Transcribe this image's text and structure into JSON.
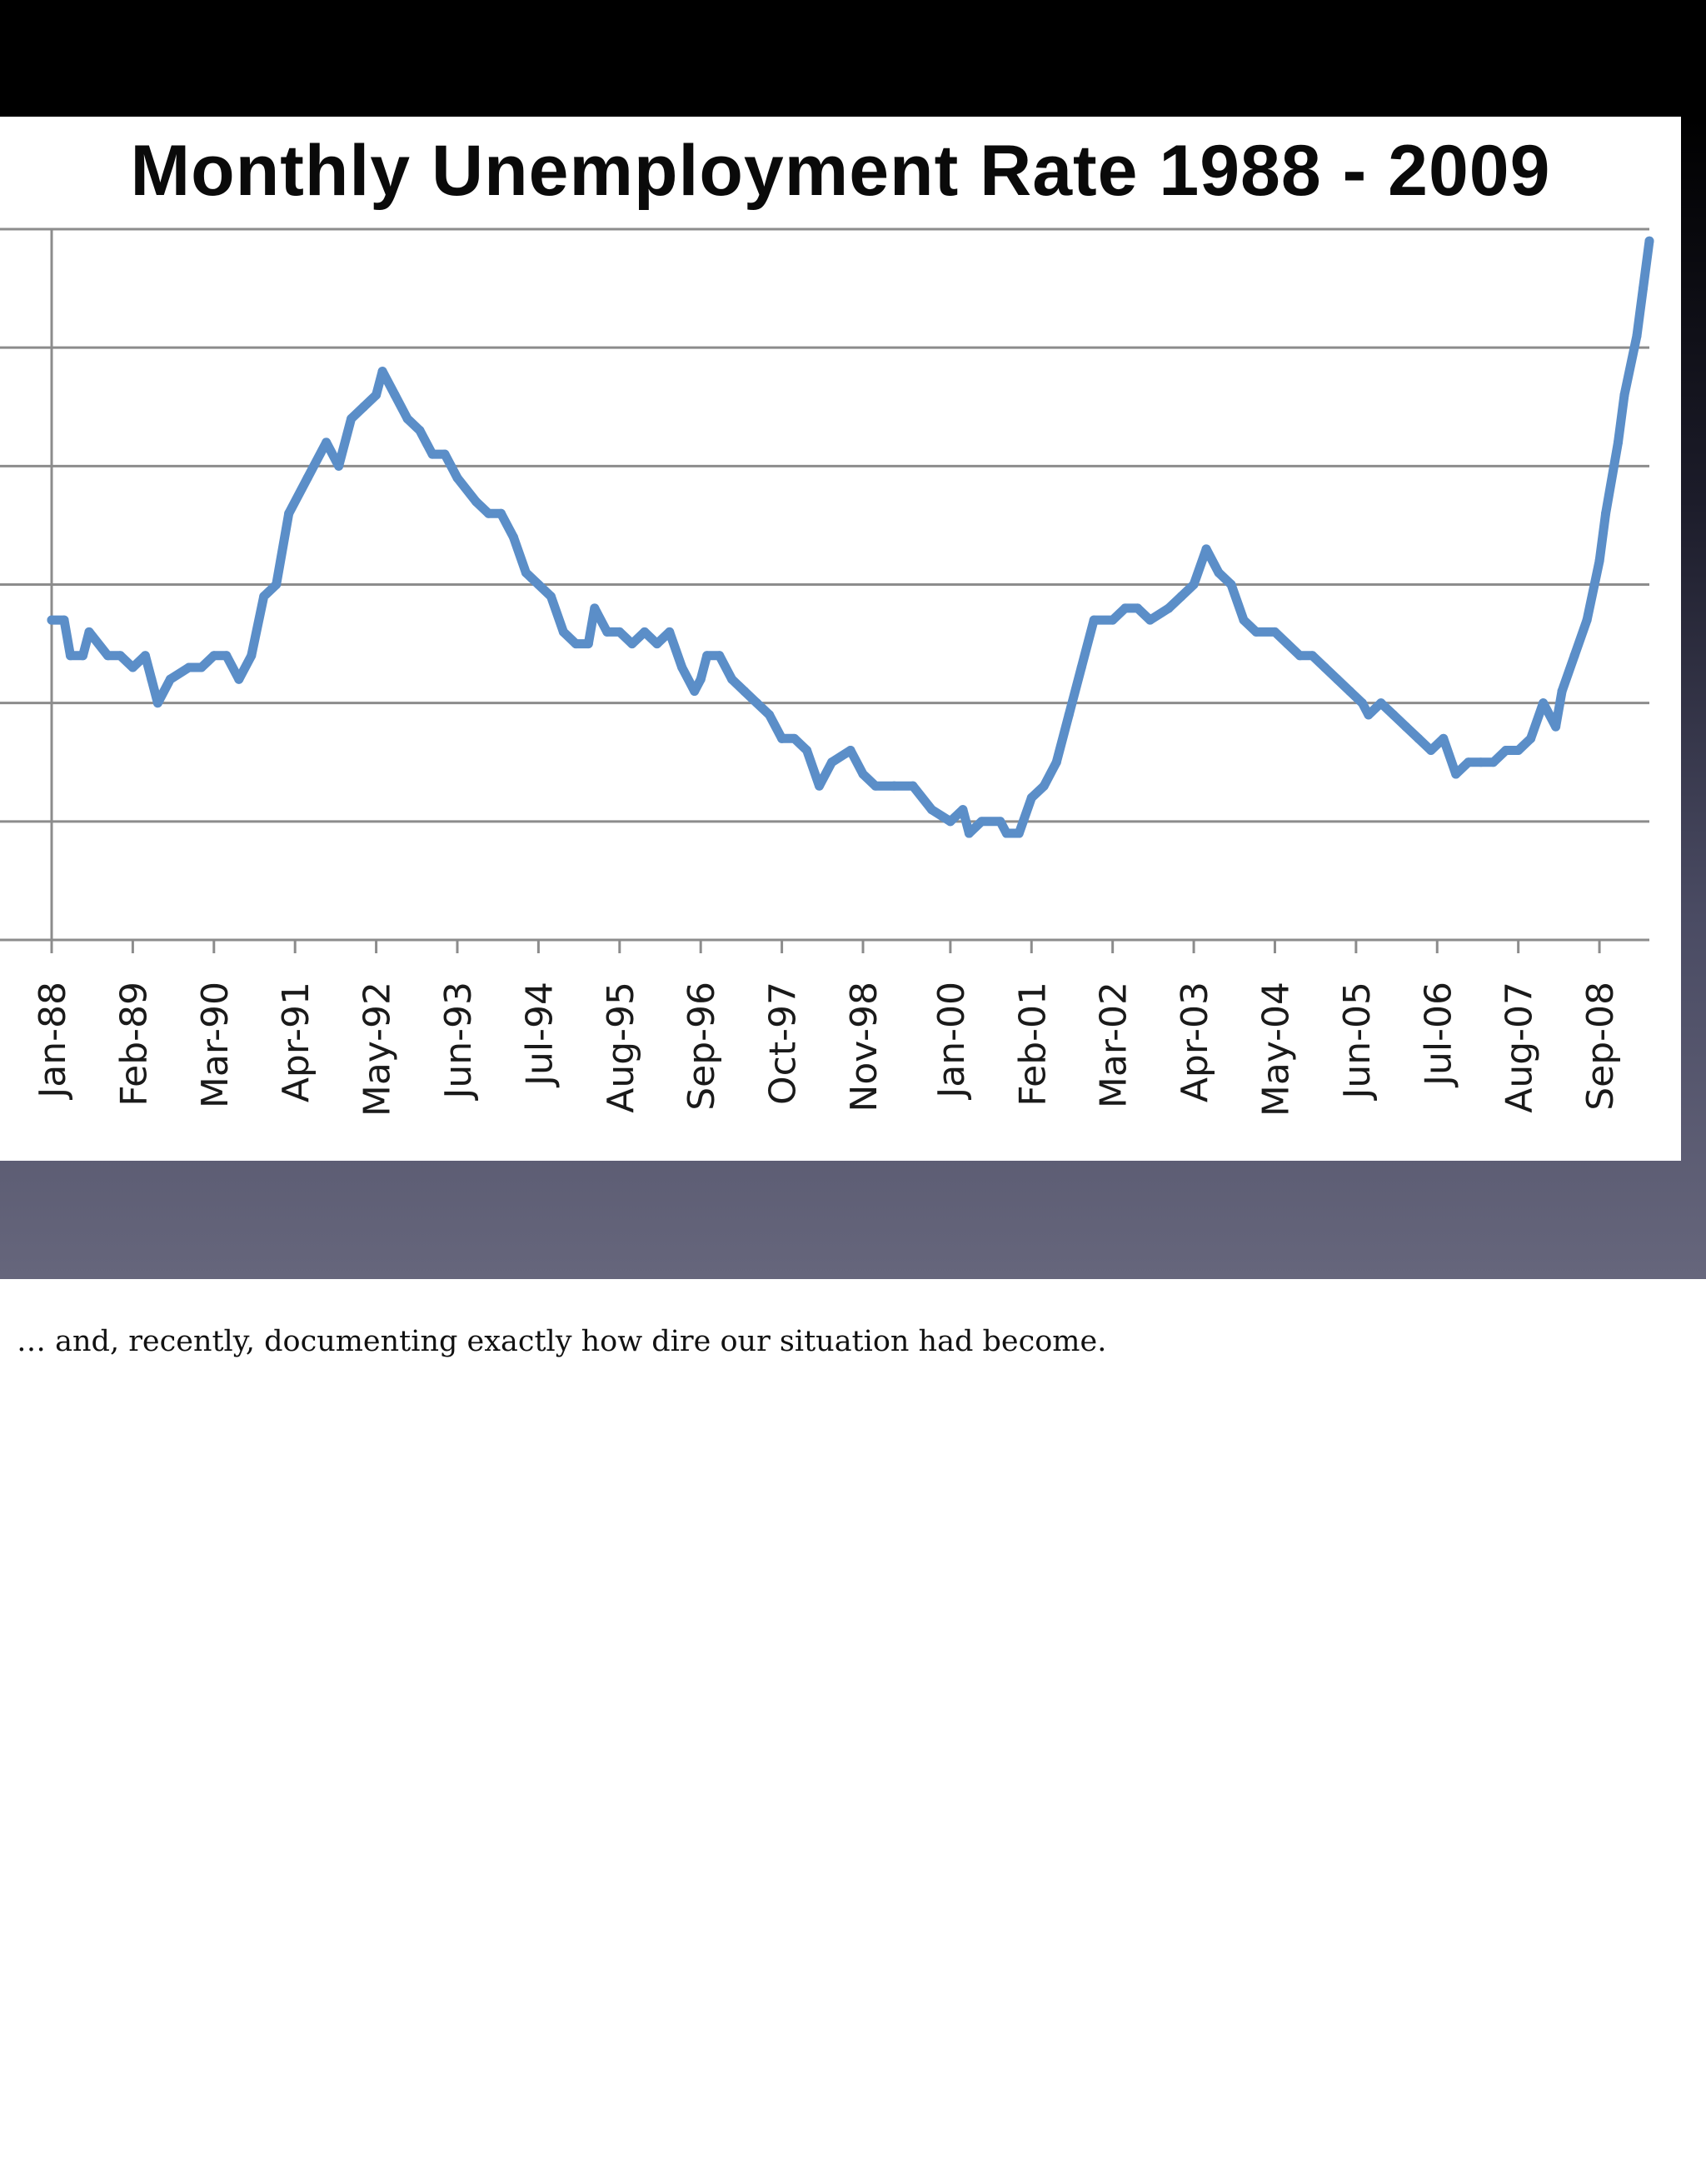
{
  "caption": "… and, recently, documenting exactly how dire our situation had become.",
  "colors": {
    "series": "#5b8ec8",
    "grid": "#8c8c8c",
    "frame": "#000000"
  },
  "chart_data": {
    "type": "line",
    "title": "Monthly Unemployment Rate 1988 - 2009",
    "xlabel": "",
    "ylabel": "",
    "ylim": [
      3,
      9
    ],
    "grid": true,
    "legend": "none",
    "x_tick_labels": [
      "Jan-88",
      "Feb-89",
      "Mar-90",
      "Apr-91",
      "May-92",
      "Jun-93",
      "Jul-94",
      "Aug-95",
      "Sep-96",
      "Oct-97",
      "Nov-98",
      "Jan-00",
      "Feb-01",
      "Mar-02",
      "Apr-03",
      "May-04",
      "Jun-05",
      "Jul-06",
      "Aug-07",
      "Sep-08"
    ],
    "series": [
      {
        "name": "",
        "points": [
          [
            "Jan-88",
            5.7
          ],
          [
            "Mar-88",
            5.7
          ],
          [
            "Apr-88",
            5.4
          ],
          [
            "Jun-88",
            5.4
          ],
          [
            "Jul-88",
            5.6
          ],
          [
            "Oct-88",
            5.4
          ],
          [
            "Dec-88",
            5.4
          ],
          [
            "Feb-89",
            5.3
          ],
          [
            "Apr-89",
            5.4
          ],
          [
            "May-89",
            5.2
          ],
          [
            "Jun-89",
            5.0
          ],
          [
            "Aug-89",
            5.2
          ],
          [
            "Nov-89",
            5.3
          ],
          [
            "Jan-90",
            5.3
          ],
          [
            "Mar-90",
            5.4
          ],
          [
            "May-90",
            5.4
          ],
          [
            "Jul-90",
            5.2
          ],
          [
            "Sep-90",
            5.4
          ],
          [
            "Nov-90",
            5.9
          ],
          [
            "Jan-91",
            6.0
          ],
          [
            "Mar-91",
            6.6
          ],
          [
            "Jun-91",
            6.9
          ],
          [
            "Sep-91",
            7.2
          ],
          [
            "Nov-91",
            7.0
          ],
          [
            "Jan-92",
            7.4
          ],
          [
            "Mar-92",
            7.5
          ],
          [
            "May-92",
            7.6
          ],
          [
            "Jun-92",
            7.8
          ],
          [
            "Aug-92",
            7.6
          ],
          [
            "Oct-92",
            7.4
          ],
          [
            "Dec-92",
            7.3
          ],
          [
            "Feb-93",
            7.1
          ],
          [
            "Apr-93",
            7.1
          ],
          [
            "Jun-93",
            6.9
          ],
          [
            "Sep-93",
            6.7
          ],
          [
            "Nov-93",
            6.6
          ],
          [
            "Jan-94",
            6.6
          ],
          [
            "Mar-94",
            6.4
          ],
          [
            "May-94",
            6.1
          ],
          [
            "Jul-94",
            6.0
          ],
          [
            "Sep-94",
            5.9
          ],
          [
            "Nov-94",
            5.6
          ],
          [
            "Jan-95",
            5.5
          ],
          [
            "Mar-95",
            5.5
          ],
          [
            "Apr-95",
            5.8
          ],
          [
            "Jun-95",
            5.6
          ],
          [
            "Aug-95",
            5.6
          ],
          [
            "Oct-95",
            5.5
          ],
          [
            "Dec-95",
            5.6
          ],
          [
            "Feb-96",
            5.5
          ],
          [
            "Apr-96",
            5.6
          ],
          [
            "Jun-96",
            5.3
          ],
          [
            "Aug-96",
            5.1
          ],
          [
            "Sep-96",
            5.2
          ],
          [
            "Oct-96",
            5.4
          ],
          [
            "Dec-96",
            5.4
          ],
          [
            "Feb-97",
            5.2
          ],
          [
            "Apr-97",
            5.1
          ],
          [
            "Jun-97",
            5.0
          ],
          [
            "Aug-97",
            4.9
          ],
          [
            "Oct-97",
            4.7
          ],
          [
            "Dec-97",
            4.7
          ],
          [
            "Feb-98",
            4.6
          ],
          [
            "Apr-98",
            4.3
          ],
          [
            "Jun-98",
            4.5
          ],
          [
            "Sep-98",
            4.6
          ],
          [
            "Nov-98",
            4.4
          ],
          [
            "Jan-99",
            4.3
          ],
          [
            "Apr-99",
            4.3
          ],
          [
            "Jul-99",
            4.3
          ],
          [
            "Oct-99",
            4.1
          ],
          [
            "Jan-00",
            4.0
          ],
          [
            "Mar-00",
            4.1
          ],
          [
            "Apr-00",
            3.9
          ],
          [
            "Jun-00",
            4.0
          ],
          [
            "Sep-00",
            4.0
          ],
          [
            "Oct-00",
            3.9
          ],
          [
            "Dec-00",
            3.9
          ],
          [
            "Feb-01",
            4.2
          ],
          [
            "Apr-01",
            4.3
          ],
          [
            "Jun-01",
            4.5
          ],
          [
            "Aug-01",
            4.9
          ],
          [
            "Oct-01",
            5.3
          ],
          [
            "Dec-01",
            5.7
          ],
          [
            "Mar-02",
            5.7
          ],
          [
            "May-02",
            5.8
          ],
          [
            "Jul-02",
            5.8
          ],
          [
            "Sep-02",
            5.7
          ],
          [
            "Dec-02",
            5.8
          ],
          [
            "Feb-03",
            5.9
          ],
          [
            "Apr-03",
            6.0
          ],
          [
            "Jun-03",
            6.3
          ],
          [
            "Aug-03",
            6.1
          ],
          [
            "Oct-03",
            6.0
          ],
          [
            "Dec-03",
            5.7
          ],
          [
            "Feb-04",
            5.6
          ],
          [
            "May-04",
            5.6
          ],
          [
            "Jul-04",
            5.5
          ],
          [
            "Sep-04",
            5.4
          ],
          [
            "Nov-04",
            5.4
          ],
          [
            "Jan-05",
            5.3
          ],
          [
            "Mar-05",
            5.2
          ],
          [
            "May-05",
            5.1
          ],
          [
            "Jul-05",
            5.0
          ],
          [
            "Aug-05",
            4.9
          ],
          [
            "Oct-05",
            5.0
          ],
          [
            "Dec-05",
            4.9
          ],
          [
            "Feb-06",
            4.8
          ],
          [
            "Apr-06",
            4.7
          ],
          [
            "Jun-06",
            4.6
          ],
          [
            "Aug-06",
            4.7
          ],
          [
            "Oct-06",
            4.4
          ],
          [
            "Dec-06",
            4.5
          ],
          [
            "Feb-07",
            4.5
          ],
          [
            "Apr-07",
            4.5
          ],
          [
            "Jun-07",
            4.6
          ],
          [
            "Aug-07",
            4.6
          ],
          [
            "Oct-07",
            4.7
          ],
          [
            "Dec-07",
            5.0
          ],
          [
            "Feb-08",
            4.8
          ],
          [
            "Mar-08",
            5.1
          ],
          [
            "May-08",
            5.4
          ],
          [
            "Jul-08",
            5.7
          ],
          [
            "Sep-08",
            6.2
          ],
          [
            "Oct-08",
            6.6
          ],
          [
            "Dec-08",
            7.2
          ],
          [
            "Jan-09",
            7.6
          ],
          [
            "Mar-09",
            8.1
          ],
          [
            "Apr-09",
            8.5
          ],
          [
            "May-09",
            8.9
          ]
        ]
      }
    ]
  }
}
